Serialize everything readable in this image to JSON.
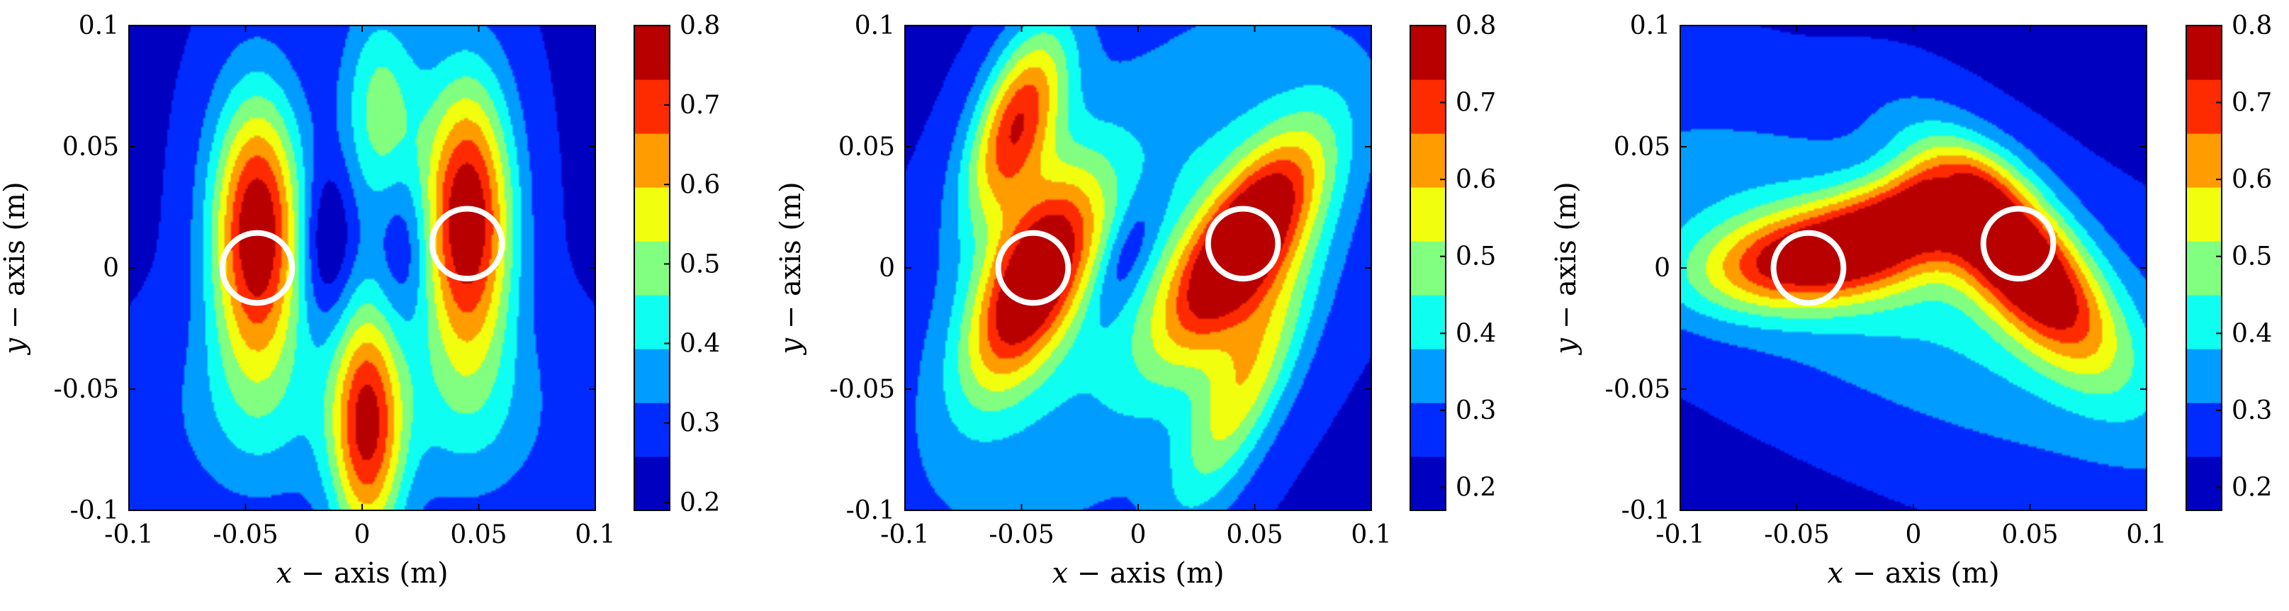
{
  "chart_data": [
    {
      "type": "contour",
      "xlabel": {
        "var": "x",
        "rest": " − axis (m)"
      },
      "ylabel": {
        "var": "y",
        "rest": " − axis (m)"
      },
      "xlim": [
        -0.1,
        0.1
      ],
      "ylim": [
        -0.1,
        0.1
      ],
      "xticks": [
        -0.1,
        -0.05,
        0,
        0.05,
        0.1
      ],
      "yticks": [
        -0.1,
        -0.05,
        0,
        0.05,
        0.1
      ],
      "xtick_labels": [
        "-0.1",
        "-0.05",
        "0",
        "0.05",
        "0.1"
      ],
      "ytick_labels": [
        "-0.1",
        "-0.05",
        "0",
        "0.05",
        "0.1"
      ],
      "colorbar": {
        "min": 0.19,
        "max": 0.8,
        "ticks": [
          0.2,
          0.3,
          0.4,
          0.5,
          0.6,
          0.7,
          0.8
        ],
        "labels": [
          "0.2",
          "0.3",
          "0.4",
          "0.5",
          "0.6",
          "0.7",
          "0.8"
        ]
      },
      "background": 0.25,
      "peaks": [
        {
          "x": -0.045,
          "y": 0.015,
          "sx": 0.014,
          "sy": 0.04,
          "a": 0.56,
          "rot": 0
        },
        {
          "x": 0.045,
          "y": 0.02,
          "sx": 0.014,
          "sy": 0.042,
          "a": 0.56,
          "rot": 0
        },
        {
          "x": 0.002,
          "y": -0.065,
          "sx": 0.011,
          "sy": 0.038,
          "a": 0.45,
          "rot": 0
        },
        {
          "x": 0.008,
          "y": 0.065,
          "sx": 0.012,
          "sy": 0.032,
          "a": 0.24,
          "rot": 0
        },
        {
          "x": -0.045,
          "y": -0.06,
          "sx": 0.03,
          "sy": 0.03,
          "a": 0.12,
          "rot": 0
        },
        {
          "x": 0.045,
          "y": -0.06,
          "sx": 0.03,
          "sy": 0.03,
          "a": 0.12,
          "rot": 0
        },
        {
          "x": -0.015,
          "y": 0.01,
          "sx": 0.008,
          "sy": 0.022,
          "a": -0.14,
          "rot": 0
        },
        {
          "x": 0.018,
          "y": 0.01,
          "sx": 0.008,
          "sy": 0.022,
          "a": -0.1,
          "rot": 0
        }
      ],
      "circles": [
        {
          "x": -0.045,
          "y": 0
        },
        {
          "x": 0.045,
          "y": 0.01
        }
      ],
      "circle_radius": 0.015
    },
    {
      "type": "contour",
      "xlabel": {
        "var": "x",
        "rest": " − axis (m)"
      },
      "ylabel": {
        "var": "y",
        "rest": " − axis (m)"
      },
      "xlim": [
        -0.1,
        0.1
      ],
      "ylim": [
        -0.1,
        0.1
      ],
      "xticks": [
        -0.1,
        -0.05,
        0,
        0.05,
        0.1
      ],
      "yticks": [
        -0.1,
        -0.05,
        0,
        0.05,
        0.1
      ],
      "xtick_labels": [
        "-0.1",
        "-0.05",
        "0",
        "0.05",
        "0.1"
      ],
      "ytick_labels": [
        "-0.1",
        "-0.05",
        "0",
        "0.05",
        "0.1"
      ],
      "colorbar": {
        "min": 0.17,
        "max": 0.8,
        "ticks": [
          0.2,
          0.3,
          0.4,
          0.5,
          0.6,
          0.7,
          0.8
        ],
        "labels": [
          "0.2",
          "0.3",
          "0.4",
          "0.5",
          "0.6",
          "0.7",
          "0.8"
        ]
      },
      "background": 0.22,
      "peaks": [
        {
          "x": -0.045,
          "y": -0.005,
          "sx": 0.014,
          "sy": 0.033,
          "a": 0.56,
          "rot": -0.45
        },
        {
          "x": -0.052,
          "y": 0.06,
          "sx": 0.012,
          "sy": 0.03,
          "a": 0.46,
          "rot": -0.35
        },
        {
          "x": 0.045,
          "y": 0.01,
          "sx": 0.014,
          "sy": 0.036,
          "a": 0.6,
          "rot": -0.6
        },
        {
          "x": 0.045,
          "y": -0.05,
          "sx": 0.012,
          "sy": 0.04,
          "a": 0.28,
          "rot": -0.45
        },
        {
          "x": 0.0,
          "y": 0.0,
          "sx": 0.05,
          "sy": 0.11,
          "a": 0.17,
          "rot": -0.6
        },
        {
          "x": -0.005,
          "y": 0.005,
          "sx": 0.007,
          "sy": 0.02,
          "a": -0.14,
          "rot": -0.4
        }
      ],
      "circles": [
        {
          "x": -0.045,
          "y": 0
        },
        {
          "x": 0.045,
          "y": 0.01
        }
      ],
      "circle_radius": 0.015
    },
    {
      "type": "contour",
      "xlabel": {
        "var": "x",
        "rest": " − axis (m)"
      },
      "ylabel": {
        "var": "y",
        "rest": " − axis (m)"
      },
      "xlim": [
        -0.1,
        0.1
      ],
      "ylim": [
        -0.1,
        0.1
      ],
      "xticks": [
        -0.1,
        -0.05,
        0,
        0.05,
        0.1
      ],
      "yticks": [
        -0.1,
        -0.05,
        0,
        0.05,
        0.1
      ],
      "xtick_labels": [
        "-0.1",
        "-0.05",
        "0",
        "0.05",
        "0.1"
      ],
      "ytick_labels": [
        "-0.1",
        "-0.05",
        "0",
        "0.05",
        "0.1"
      ],
      "colorbar": {
        "min": 0.17,
        "max": 0.8,
        "ticks": [
          0.2,
          0.3,
          0.4,
          0.5,
          0.6,
          0.7,
          0.8
        ],
        "labels": [
          "0.2",
          "0.3",
          "0.4",
          "0.5",
          "0.6",
          "0.7",
          "0.8"
        ]
      },
      "background": 0.22,
      "peaks": [
        {
          "x": -0.04,
          "y": 0.005,
          "sx": 0.036,
          "sy": 0.014,
          "a": 0.5,
          "rot": 0.15
        },
        {
          "x": 0.045,
          "y": 0.005,
          "sx": 0.015,
          "sy": 0.038,
          "a": 0.6,
          "rot": 0.7
        },
        {
          "x": 0.0,
          "y": 0.025,
          "sx": 0.022,
          "sy": 0.012,
          "a": 0.28,
          "rot": 0.3
        },
        {
          "x": 0.0,
          "y": -0.01,
          "sx": 0.12,
          "sy": 0.04,
          "a": 0.17,
          "rot": -0.4
        },
        {
          "x": 0.015,
          "y": 0.03,
          "sx": 0.006,
          "sy": 0.006,
          "a": -0.14,
          "rot": 0
        }
      ],
      "circles": [
        {
          "x": -0.045,
          "y": 0
        },
        {
          "x": 0.045,
          "y": 0.01
        }
      ],
      "circle_radius": 0.015
    }
  ],
  "palette": {
    "circle": "#ffffff",
    "jet": [
      "#00008f",
      "#0000ff",
      "#0080ff",
      "#00ffff",
      "#80ff80",
      "#ffff00",
      "#ff8000",
      "#ff0000",
      "#800000"
    ]
  }
}
